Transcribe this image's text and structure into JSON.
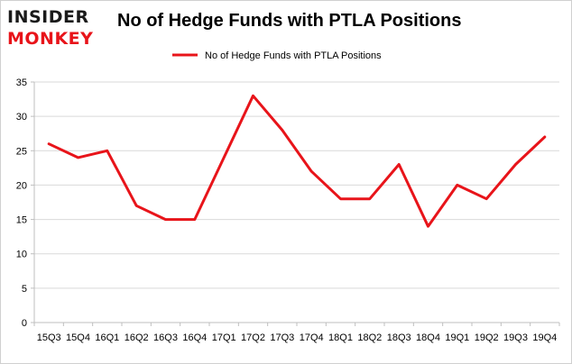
{
  "logo": {
    "line1": "INSIDER",
    "line2": "MONKEY"
  },
  "colors": {
    "series": "#e8141a",
    "grid": "#d9d9d9",
    "axis": "#bfbfbf",
    "logo_dark": "#1a1a1a",
    "logo_red": "#e8141a"
  },
  "chart_data": {
    "type": "line",
    "title": "No of Hedge Funds with PTLA Positions",
    "xlabel": "",
    "ylabel": "",
    "ylim": [
      0,
      35
    ],
    "yticks": [
      0,
      5,
      10,
      15,
      20,
      25,
      30,
      35
    ],
    "grid": true,
    "legend_position": "top-center",
    "categories": [
      "15Q3",
      "15Q4",
      "16Q1",
      "16Q2",
      "16Q3",
      "16Q4",
      "17Q1",
      "17Q2",
      "17Q3",
      "17Q4",
      "18Q1",
      "18Q2",
      "18Q3",
      "18Q4",
      "19Q1",
      "19Q2",
      "19Q3",
      "19Q4"
    ],
    "series": [
      {
        "name": "No of Hedge Funds with PTLA Positions",
        "values": [
          26,
          24,
          25,
          17,
          15,
          15,
          24,
          33,
          28,
          22,
          18,
          18,
          23,
          14,
          20,
          18,
          23,
          27
        ]
      }
    ]
  }
}
